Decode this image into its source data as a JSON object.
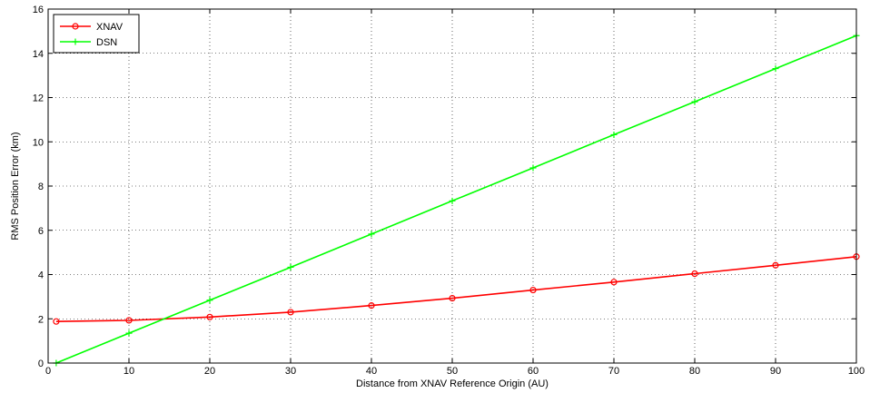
{
  "chart_data": {
    "type": "line",
    "xlabel": "Distance from XNAV Reference Origin (AU)",
    "ylabel": "RMS Position Error (km)",
    "xlim": [
      0,
      100
    ],
    "ylim": [
      0,
      16
    ],
    "xticks": [
      0,
      10,
      20,
      30,
      40,
      50,
      60,
      70,
      80,
      90,
      100
    ],
    "yticks": [
      0,
      2,
      4,
      6,
      8,
      10,
      12,
      14,
      16
    ],
    "grid": true,
    "legend_position": "top-left",
    "series": [
      {
        "name": "XNAV",
        "color": "#ff0000",
        "marker": "circle",
        "x": [
          1,
          10,
          20,
          30,
          40,
          50,
          60,
          70,
          80,
          90,
          100
        ],
        "values": [
          1.88,
          1.93,
          2.08,
          2.3,
          2.6,
          2.93,
          3.3,
          3.66,
          4.04,
          4.42,
          4.81
        ]
      },
      {
        "name": "DSN",
        "color": "#00ff00",
        "marker": "plus",
        "x": [
          1,
          10,
          20,
          30,
          40,
          50,
          60,
          70,
          80,
          90,
          100
        ],
        "values": [
          0.0,
          1.35,
          2.84,
          4.33,
          5.83,
          7.33,
          8.82,
          10.32,
          11.81,
          13.31,
          14.8
        ]
      }
    ]
  }
}
